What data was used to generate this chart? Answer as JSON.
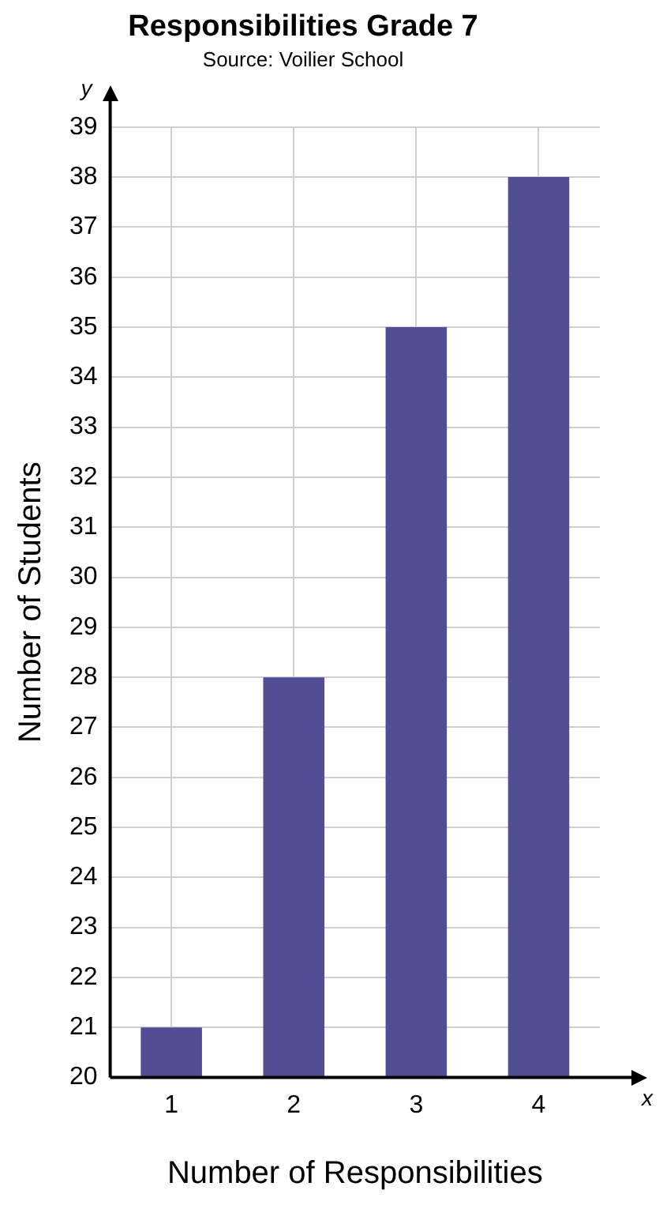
{
  "chart_data": {
    "type": "bar",
    "title": "Responsibilities Grade 7",
    "annotations": [
      "Source: Voilier School",
      "y",
      "x"
    ],
    "xlabel": "Number of Responsibilities",
    "ylabel": "Number of Students",
    "categories": [
      "1",
      "2",
      "3",
      "4"
    ],
    "values": [
      21,
      28,
      35,
      38
    ],
    "color": "#524e96",
    "ylim": [
      20,
      39
    ],
    "yticks": [
      20,
      21,
      22,
      23,
      24,
      25,
      26,
      27,
      28,
      29,
      30,
      31,
      32,
      33,
      34,
      35,
      36,
      37,
      38,
      39
    ],
    "grid": true
  }
}
